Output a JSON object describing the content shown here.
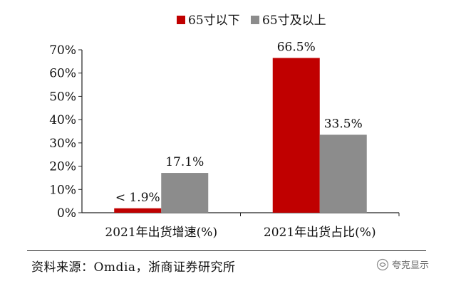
{
  "chart_data": {
    "type": "bar",
    "categories": [
      "2021年出货增速(%)",
      "2021年出货占比(%)"
    ],
    "series": [
      {
        "name": "65寸以下",
        "color": "#c00000",
        "values": [
          1.9,
          66.5
        ],
        "labels": [
          "< 1.9%",
          "66.5%"
        ]
      },
      {
        "name": "65寸及以上",
        "color": "#8c8c8c",
        "values": [
          17.1,
          33.5
        ],
        "labels": [
          "17.1%",
          "33.5%"
        ]
      }
    ],
    "ylim": [
      0,
      70
    ],
    "yticks": [
      "0%",
      "10%",
      "20%",
      "30%",
      "40%",
      "50%",
      "60%",
      "70%"
    ],
    "legend_position": "top-center",
    "grid": false
  },
  "source": "资料来源：Omdia，浙商证券研究所",
  "watermark": "夸克显示"
}
